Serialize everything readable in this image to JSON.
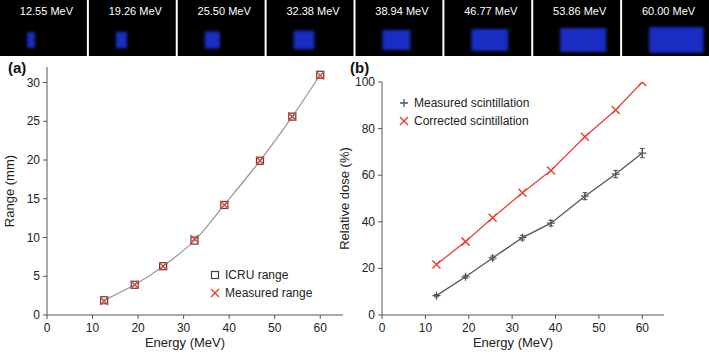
{
  "strip": {
    "labels": [
      "12.55 MeV",
      "19.26 MeV",
      "25.50 MeV",
      "32.38 MeV",
      "38.94 MeV",
      "46.77 MeV",
      "53.86 MeV",
      "60.00 MeV"
    ]
  },
  "chart_data": [
    {
      "type": "scatter",
      "title": "(a)",
      "x_label": "Energy (MeV)",
      "y_label": "Range (mm)",
      "x": [
        12.55,
        19.26,
        25.5,
        32.38,
        38.94,
        46.77,
        53.86,
        60.0
      ],
      "series": [
        {
          "name": "ICRU range",
          "color": "#444444",
          "marker": "square",
          "line_style": "solid",
          "values": [
            1.9,
            3.9,
            6.3,
            9.6,
            14.2,
            19.9,
            25.6,
            31.0
          ]
        },
        {
          "name": "Measured range",
          "color": "#e8443a",
          "marker": "x",
          "values": [
            1.8,
            3.9,
            6.3,
            9.8,
            14.2,
            19.9,
            25.6,
            30.9
          ]
        }
      ],
      "xlim": [
        0,
        65
      ],
      "xticks": [
        0,
        10,
        20,
        30,
        40,
        50,
        60
      ],
      "ylim": [
        0,
        32
      ],
      "yticks": [
        0,
        5,
        10,
        15,
        20,
        25,
        30
      ],
      "legend": "lower right",
      "grid": false
    },
    {
      "type": "scatter",
      "title": "(b)",
      "x_label": "Energy (MeV)",
      "y_label": "Relative dose (%)",
      "x": [
        12.55,
        19.26,
        25.5,
        32.38,
        38.94,
        46.77,
        53.86,
        60.0
      ],
      "series": [
        {
          "name": "Measured scintillation",
          "color": "#555555",
          "marker": "plus",
          "line_style": "solid",
          "values": [
            8.3,
            16.4,
            24.5,
            33.2,
            39.4,
            51.0,
            60.5,
            69.5
          ],
          "errors": [
            0.5,
            0.6,
            0.8,
            1.0,
            1.2,
            1.5,
            1.6,
            2.0
          ]
        },
        {
          "name": "Corrected scintillation",
          "color": "#e8443a",
          "marker": "x",
          "line_style": "solid",
          "values": [
            21.7,
            31.5,
            41.7,
            52.5,
            62.0,
            76.5,
            88.0,
            100.0
          ]
        }
      ],
      "xlim": [
        0,
        65
      ],
      "xticks": [
        0,
        10,
        20,
        30,
        40,
        50,
        60
      ],
      "ylim": [
        0,
        100
      ],
      "yticks": [
        0,
        20,
        40,
        60,
        80,
        100
      ],
      "legend": "upper left",
      "grid": false
    }
  ]
}
